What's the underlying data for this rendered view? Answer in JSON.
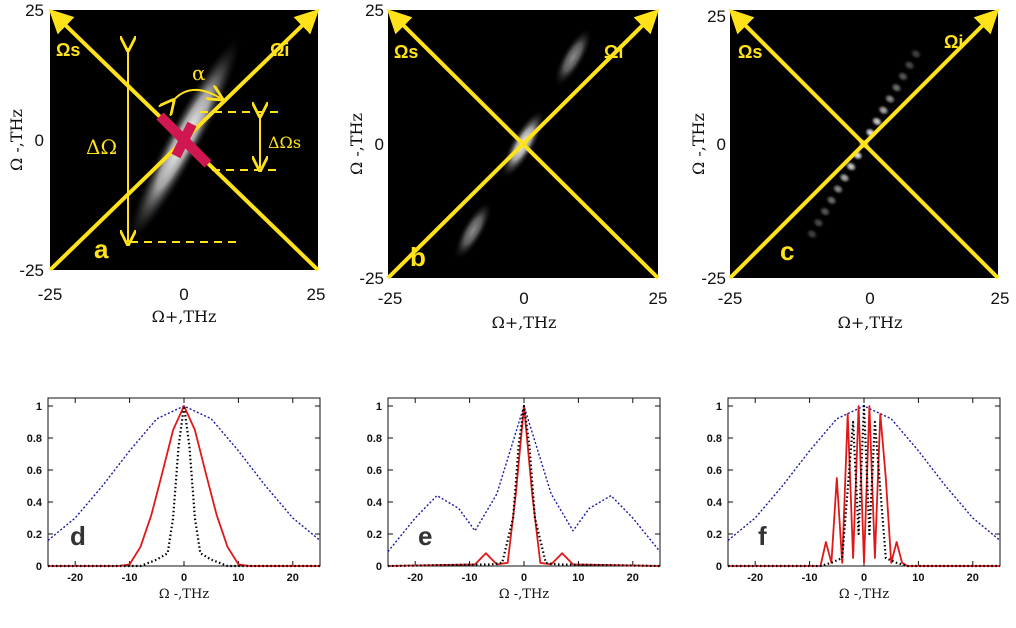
{
  "heatmaps": [
    {
      "label": "a",
      "omega_s_label": "Ωs",
      "omega_i_label": "Ωi",
      "xlabel": "Ω+,THz",
      "ylabel": "Ω -,THz",
      "xticks": [
        "-25",
        "0",
        "25"
      ],
      "yticks": [
        "25",
        "0",
        "-25"
      ],
      "annotations": {
        "alpha": "α",
        "delta_omega": "ΔΩ",
        "delta_omega_s": "ΔΩs"
      }
    },
    {
      "label": "b",
      "omega_s_label": "Ωs",
      "omega_i_label": "Ωi",
      "xlabel": "Ω+,THz",
      "ylabel": "Ω -,THz",
      "xticks": [
        "-25",
        "0",
        "25"
      ],
      "yticks": [
        "25",
        "0",
        "-25"
      ]
    },
    {
      "label": "c",
      "omega_s_label": "Ωs",
      "omega_i_label": "Ωi",
      "xlabel": "Ω+,THz",
      "ylabel": "Ω -,THz",
      "xticks": [
        "-25",
        "0",
        "25"
      ],
      "yticks": [
        "25",
        "0",
        "-25"
      ]
    }
  ],
  "colors": {
    "blue_dotted": "#1a1aa6",
    "red_solid": "#e01818",
    "black_dotted": "#000000",
    "arrow": "#ffe21a",
    "crosshair": "#d0174f"
  },
  "chart_data": [
    {
      "type": "heatmap",
      "panel": "a",
      "xlim": [
        -25,
        25
      ],
      "ylim": [
        -25,
        25
      ],
      "shape": "single elongated lobe along anti-diagonal",
      "grid": false
    },
    {
      "type": "heatmap",
      "panel": "b",
      "xlim": [
        -25,
        25
      ],
      "ylim": [
        -25,
        25
      ],
      "shape": "central lobe with two side lobes along anti-diagonal",
      "grid": false
    },
    {
      "type": "heatmap",
      "panel": "c",
      "xlim": [
        -25,
        25
      ],
      "ylim": [
        -25,
        25
      ],
      "shape": "periodic fringes along anti-diagonal",
      "grid": false
    },
    {
      "type": "line",
      "panel": "d",
      "label": "d",
      "xlabel": "Ω -,THz",
      "xlim": [
        -25,
        25
      ],
      "ylim": [
        0,
        1.05
      ],
      "xticks": [
        "-20",
        "-10",
        "0",
        "10",
        "20"
      ],
      "yticks": [
        "0",
        "0.2",
        "0.4",
        "0.6",
        "0.8",
        "1"
      ],
      "series": [
        {
          "style": "blue dotted",
          "x": [
            -25,
            -20,
            -15,
            -10,
            -5,
            0,
            5,
            10,
            15,
            20,
            25
          ],
          "y": [
            0.16,
            0.3,
            0.5,
            0.72,
            0.92,
            1,
            0.92,
            0.72,
            0.5,
            0.3,
            0.16
          ]
        },
        {
          "style": "red solid",
          "x": [
            -25,
            -12,
            -10,
            -8,
            -6,
            -4,
            -2,
            0,
            2,
            4,
            6,
            8,
            10,
            12,
            25
          ],
          "y": [
            0,
            0,
            0.01,
            0.12,
            0.32,
            0.58,
            0.85,
            1,
            0.85,
            0.58,
            0.32,
            0.12,
            0.01,
            0,
            0
          ]
        },
        {
          "style": "black dotted",
          "x": [
            -25,
            -8,
            -5,
            -3,
            -2,
            -1,
            0,
            1,
            2,
            3,
            5,
            8,
            25
          ],
          "y": [
            0,
            0,
            0.04,
            0.08,
            0.3,
            0.75,
            1,
            0.75,
            0.3,
            0.08,
            0.04,
            0,
            0
          ]
        }
      ]
    },
    {
      "type": "line",
      "panel": "e",
      "label": "e",
      "xlabel": "Ω -,THz",
      "xlim": [
        -25,
        25
      ],
      "ylim": [
        0,
        1.05
      ],
      "xticks": [
        "-20",
        "-10",
        "0",
        "10",
        "20"
      ],
      "yticks": [
        "0",
        "0.2",
        "0.4",
        "0.6",
        "0.8",
        "1"
      ],
      "series": [
        {
          "style": "blue dotted",
          "x": [
            -25,
            -20,
            -16,
            -12,
            -9,
            -5,
            0,
            5,
            9,
            12,
            16,
            20,
            25
          ],
          "y": [
            0.09,
            0.3,
            0.44,
            0.36,
            0.22,
            0.45,
            1,
            0.45,
            0.22,
            0.36,
            0.44,
            0.3,
            0.09
          ]
        },
        {
          "style": "red solid",
          "x": [
            -25,
            -9,
            -7,
            -5,
            -3,
            -1.5,
            0,
            1.5,
            3,
            5,
            7,
            9,
            25
          ],
          "y": [
            0,
            0.01,
            0.08,
            0.01,
            0.02,
            0.45,
            1,
            0.45,
            0.02,
            0.01,
            0.08,
            0.01,
            0
          ]
        },
        {
          "style": "black dotted",
          "x": [
            -25,
            -6,
            -4,
            -2,
            -1,
            0,
            1,
            2,
            4,
            6,
            25
          ],
          "y": [
            0,
            0.01,
            0.02,
            0.3,
            0.75,
            1,
            0.75,
            0.3,
            0.02,
            0.01,
            0
          ]
        }
      ]
    },
    {
      "type": "line",
      "panel": "f",
      "label": "f",
      "xlabel": "Ω -,THz",
      "xlim": [
        -25,
        25
      ],
      "ylim": [
        0,
        1.05
      ],
      "xticks": [
        "-20",
        "-10",
        "0",
        "10",
        "20"
      ],
      "yticks": [
        "0",
        "0.2",
        "0.4",
        "0.6",
        "0.8",
        "1"
      ],
      "series": [
        {
          "style": "blue dotted",
          "x": [
            -25,
            -20,
            -15,
            -10,
            -5,
            0,
            5,
            10,
            15,
            20,
            25
          ],
          "y": [
            0.16,
            0.3,
            0.5,
            0.72,
            0.92,
            1,
            0.92,
            0.72,
            0.5,
            0.3,
            0.16
          ]
        },
        {
          "style": "red solid",
          "x": [
            -25,
            -8,
            -7,
            -6,
            -5,
            -4,
            -3,
            -2,
            -1,
            0,
            1,
            2,
            3,
            4,
            5,
            6,
            7,
            8,
            25
          ],
          "y": [
            0,
            0,
            0.15,
            0.02,
            0.55,
            0.02,
            0.95,
            0.05,
            1,
            0.02,
            1,
            0.05,
            0.95,
            0.55,
            0.02,
            0.15,
            0.02,
            0,
            0
          ]
        },
        {
          "style": "black dotted",
          "x": [
            -25,
            -8,
            -6,
            -4,
            -2,
            -1,
            0,
            1,
            2,
            4,
            6,
            8,
            25
          ],
          "y": [
            0,
            0,
            0.02,
            0.05,
            0.9,
            0.2,
            1,
            0.2,
            0.9,
            0.05,
            0.02,
            0,
            0
          ]
        }
      ]
    }
  ]
}
